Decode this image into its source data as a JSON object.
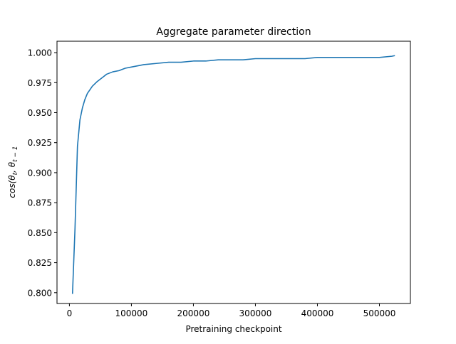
{
  "chart_data": {
    "type": "line",
    "title": "Aggregate parameter direction",
    "xlabel": "Pretraining checkpoint",
    "ylabel": "cos(θ_t, θ_{t-1})",
    "xlim": [
      -20000,
      550000
    ],
    "ylim": [
      0.791,
      1.0095
    ],
    "xticks": [
      0,
      100000,
      200000,
      300000,
      400000,
      500000
    ],
    "xtick_labels": [
      "0",
      "100000",
      "200000",
      "300000",
      "400000",
      "500000"
    ],
    "yticks": [
      0.8,
      0.825,
      0.85,
      0.875,
      0.9,
      0.925,
      0.95,
      0.975,
      1.0
    ],
    "ytick_labels": [
      "0.800",
      "0.825",
      "0.850",
      "0.875",
      "0.900",
      "0.925",
      "0.950",
      "0.975",
      "1.000"
    ],
    "grid": false,
    "colors": {
      "line": "#1f77b4"
    },
    "series": [
      {
        "x": [
          5000,
          9000,
          13000,
          17000,
          21000,
          25000,
          29000,
          33000,
          37000,
          41000,
          45000,
          50000,
          55000,
          60000,
          70000,
          80000,
          90000,
          100000,
          120000,
          140000,
          160000,
          180000,
          200000,
          220000,
          240000,
          260000,
          280000,
          300000,
          320000,
          340000,
          360000,
          380000,
          400000,
          420000,
          440000,
          460000,
          480000,
          500000,
          520000,
          525000
        ],
        "y": [
          0.799,
          0.853,
          0.922,
          0.944,
          0.954,
          0.961,
          0.966,
          0.969,
          0.972,
          0.974,
          0.976,
          0.978,
          0.98,
          0.982,
          0.984,
          0.985,
          0.987,
          0.988,
          0.99,
          0.991,
          0.992,
          0.992,
          0.993,
          0.993,
          0.994,
          0.994,
          0.994,
          0.995,
          0.995,
          0.995,
          0.995,
          0.995,
          0.996,
          0.996,
          0.996,
          0.996,
          0.996,
          0.996,
          0.997,
          0.9975
        ]
      }
    ]
  }
}
